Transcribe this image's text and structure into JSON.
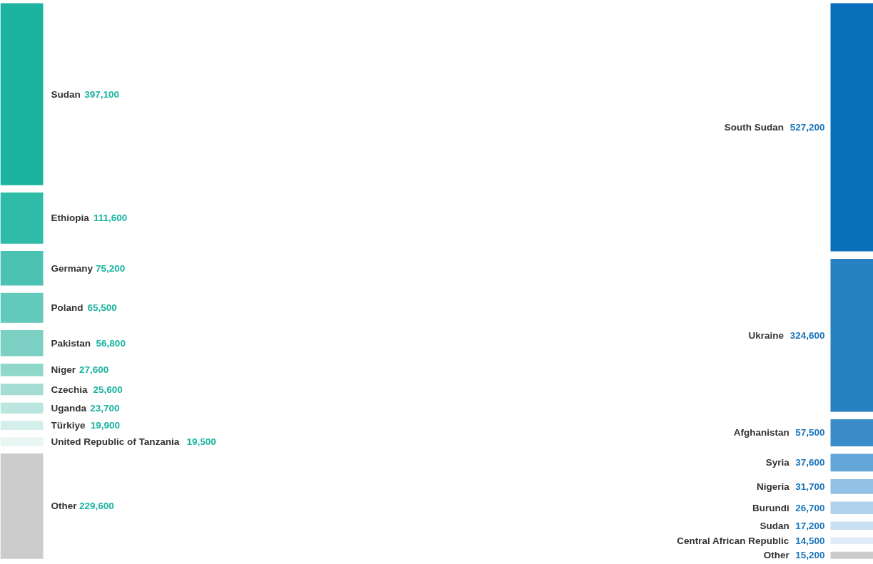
{
  "chart_data": [
    {
      "type": "other",
      "categories": [
        "Sudan",
        "Ethiopia",
        "Germany",
        "Poland",
        "Pakistan",
        "Niger",
        "Czechia",
        "Uganda",
        "Türkiye",
        "United Republic of Tanzania",
        "Other"
      ],
      "values": [
        397100,
        111600,
        75200,
        65500,
        56800,
        27600,
        25600,
        23700,
        19900,
        19500,
        229600
      ],
      "value_labels": [
        "397,100",
        "111,600",
        "75,200",
        "65,500",
        "56,800",
        "27,600",
        "25,600",
        "23,700",
        "19,900",
        "19,500",
        "229,600"
      ],
      "colors": [
        "#1ab4a0",
        "#2ebba8",
        "#4cc3b2",
        "#62c9bb",
        "#7ccfc3",
        "#8fd6cb",
        "#a3ddd4",
        "#bbe6df",
        "#d4efeb",
        "#e8f6f4",
        "#cccccc"
      ]
    },
    {
      "type": "other",
      "categories": [
        "South Sudan",
        "Ukraine",
        "Afghanistan",
        "Syria",
        "Nigeria",
        "Burundi",
        "Sudan",
        "Central African Republic",
        "Other"
      ],
      "values": [
        527200,
        324600,
        57500,
        37600,
        31700,
        26700,
        17200,
        14500,
        15200
      ],
      "value_labels": [
        "527,200",
        "324,600",
        "57,500",
        "37,600",
        "31,700",
        "26,700",
        "17,200",
        "14,500",
        "15,200"
      ],
      "colors": [
        "#0a6fbb",
        "#2680c2",
        "#3a8cc9",
        "#64a6d8",
        "#93c1e6",
        "#b0d2ee",
        "#c8e0f3",
        "#dfecf8",
        "#cccccc"
      ]
    }
  ]
}
